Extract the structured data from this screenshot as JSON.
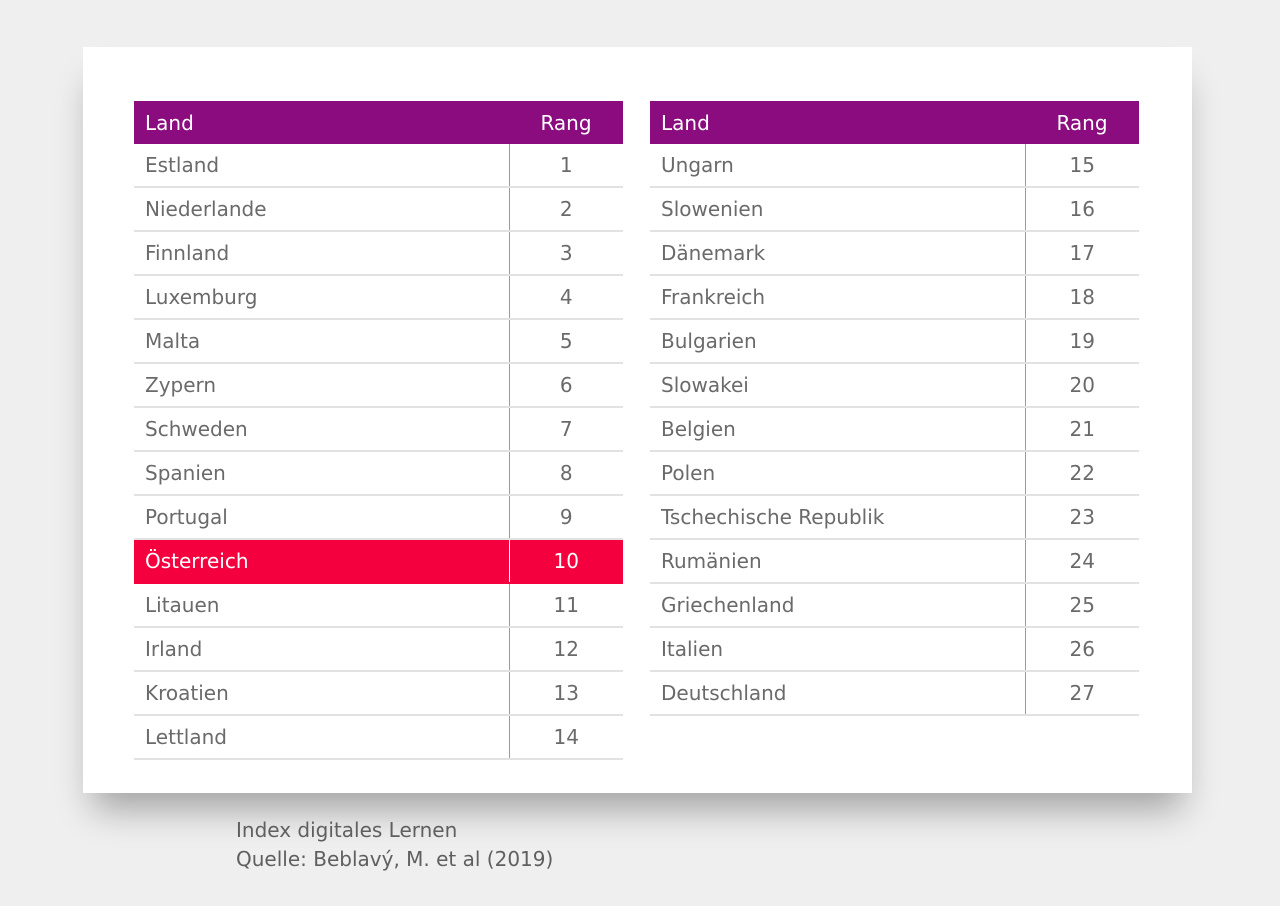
{
  "table_headers": {
    "land": "Land",
    "rang": "Rang"
  },
  "left_table": [
    {
      "land": "Estland",
      "rang": "1"
    },
    {
      "land": "Niederlande",
      "rang": "2"
    },
    {
      "land": "Finnland",
      "rang": "3"
    },
    {
      "land": "Luxemburg",
      "rang": "4"
    },
    {
      "land": "Malta",
      "rang": "5"
    },
    {
      "land": "Zypern",
      "rang": "6"
    },
    {
      "land": "Schweden",
      "rang": "7"
    },
    {
      "land": "Spanien",
      "rang": "8"
    },
    {
      "land": "Portugal",
      "rang": "9"
    },
    {
      "land": "Österreich",
      "rang": "10",
      "highlight": true
    },
    {
      "land": "Litauen",
      "rang": "11"
    },
    {
      "land": "Irland",
      "rang": "12"
    },
    {
      "land": "Kroatien",
      "rang": "13"
    },
    {
      "land": "Lettland",
      "rang": "14"
    }
  ],
  "right_table": [
    {
      "land": "Ungarn",
      "rang": "15"
    },
    {
      "land": "Slowenien",
      "rang": "16"
    },
    {
      "land": "Dänemark",
      "rang": "17"
    },
    {
      "land": "Frankreich",
      "rang": "18"
    },
    {
      "land": "Bulgarien",
      "rang": "19"
    },
    {
      "land": "Slowakei",
      "rang": "20"
    },
    {
      "land": "Belgien",
      "rang": "21"
    },
    {
      "land": "Polen",
      "rang": "22"
    },
    {
      "land": "Tschechische Republik",
      "rang": "23"
    },
    {
      "land": "Rumänien",
      "rang": "24"
    },
    {
      "land": "Griechenland",
      "rang": "25"
    },
    {
      "land": "Italien",
      "rang": "26"
    },
    {
      "land": "Deutschland",
      "rang": "27"
    }
  ],
  "caption": {
    "line1": "Index digitales Lernen",
    "line2": "Quelle: Beblavý, M. et al (2019)"
  },
  "colors": {
    "header_bg": "#8b0c7f",
    "highlight_bg": "#f5003f",
    "page_bg": "#efefef",
    "card_bg": "#ffffff"
  }
}
